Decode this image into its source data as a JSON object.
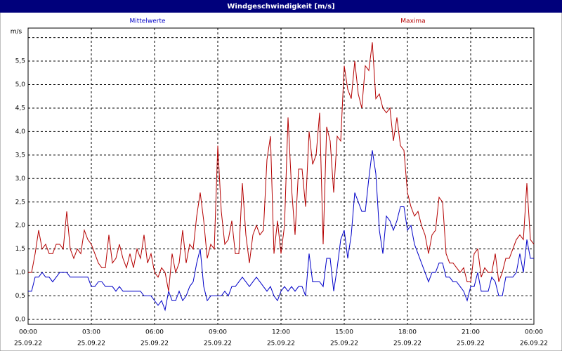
{
  "chart_data": {
    "type": "line",
    "title": "Windgeschwindigkeit [m/s]",
    "y_label": "m/s",
    "x": [
      0,
      10,
      20,
      30,
      40,
      50,
      60,
      70,
      80,
      90,
      100,
      110,
      120,
      130,
      140,
      150,
      160,
      170,
      180,
      190,
      200,
      210,
      220,
      230,
      240,
      250,
      260,
      270,
      280,
      290,
      300,
      310,
      320,
      330,
      340,
      350,
      360,
      370,
      380,
      390,
      400,
      410,
      420,
      430,
      440,
      450,
      460,
      470,
      480,
      490,
      500,
      510,
      520,
      530,
      540,
      550,
      560,
      570,
      580,
      590,
      600,
      610,
      620,
      630,
      640,
      650,
      660,
      670,
      680,
      690,
      700,
      710,
      720,
      730,
      740,
      750,
      760,
      770,
      780,
      790,
      800,
      810,
      820,
      830,
      840,
      850,
      860,
      870,
      880,
      890,
      900,
      910,
      920,
      930,
      940,
      950,
      960,
      970,
      980,
      990,
      1000,
      1010,
      1020,
      1030,
      1040,
      1050,
      1060,
      1070,
      1080,
      1090,
      1100,
      1110,
      1120,
      1130,
      1140,
      1150,
      1160,
      1170,
      1180,
      1190,
      1200,
      1210,
      1220,
      1230,
      1240,
      1250,
      1260,
      1270,
      1280,
      1290,
      1300,
      1310,
      1320,
      1330,
      1340,
      1350,
      1360,
      1370,
      1380,
      1390,
      1400,
      1410,
      1420,
      1430,
      1440
    ],
    "series": [
      {
        "name": "Mittelwerte",
        "color": "#0000c8",
        "values": [
          0.6,
          0.6,
          0.9,
          0.9,
          1.0,
          0.9,
          0.9,
          0.8,
          0.9,
          1.0,
          1.0,
          1.0,
          0.9,
          0.9,
          0.9,
          0.9,
          0.9,
          0.9,
          0.7,
          0.7,
          0.8,
          0.8,
          0.7,
          0.7,
          0.7,
          0.6,
          0.7,
          0.6,
          0.6,
          0.6,
          0.6,
          0.6,
          0.6,
          0.5,
          0.5,
          0.5,
          0.4,
          0.3,
          0.4,
          0.2,
          0.6,
          0.4,
          0.4,
          0.6,
          0.4,
          0.5,
          0.7,
          0.8,
          1.2,
          1.5,
          0.7,
          0.4,
          0.5,
          0.5,
          0.5,
          0.5,
          0.6,
          0.5,
          0.7,
          0.7,
          0.8,
          0.9,
          0.8,
          0.7,
          0.8,
          0.9,
          0.8,
          0.7,
          0.6,
          0.7,
          0.5,
          0.4,
          0.6,
          0.7,
          0.6,
          0.7,
          0.6,
          0.7,
          0.7,
          0.5,
          1.4,
          0.8,
          0.8,
          0.8,
          0.7,
          1.3,
          1.3,
          0.6,
          1.1,
          1.7,
          1.9,
          1.3,
          1.8,
          2.7,
          2.5,
          2.3,
          2.3,
          3.0,
          3.6,
          3.1,
          1.9,
          1.4,
          2.2,
          2.1,
          1.9,
          2.1,
          2.4,
          2.4,
          1.9,
          2.0,
          1.6,
          1.4,
          1.2,
          1.0,
          0.8,
          1.0,
          1.0,
          1.2,
          1.2,
          0.9,
          0.9,
          0.8,
          0.8,
          0.7,
          0.6,
          0.4,
          0.7,
          0.7,
          1.0,
          0.6,
          0.6,
          0.6,
          0.9,
          0.8,
          0.5,
          0.5,
          0.9,
          0.9,
          0.9,
          1.0,
          1.4,
          1.0,
          1.7,
          1.3,
          1.3
        ]
      },
      {
        "name": "Maxima",
        "color": "#b40000",
        "values": [
          1.0,
          1.0,
          1.4,
          1.9,
          1.5,
          1.6,
          1.4,
          1.4,
          1.6,
          1.6,
          1.5,
          2.3,
          1.5,
          1.3,
          1.5,
          1.4,
          1.9,
          1.7,
          1.6,
          1.4,
          1.2,
          1.1,
          1.1,
          1.8,
          1.2,
          1.3,
          1.6,
          1.3,
          1.1,
          1.4,
          1.1,
          1.5,
          1.3,
          1.8,
          1.2,
          1.4,
          1.0,
          0.9,
          1.1,
          1.0,
          0.6,
          1.4,
          1.0,
          1.2,
          1.9,
          1.2,
          1.6,
          1.5,
          2.2,
          2.7,
          2.1,
          1.3,
          1.6,
          1.5,
          3.7,
          2.3,
          1.6,
          1.7,
          2.1,
          1.4,
          1.4,
          2.9,
          1.8,
          1.2,
          1.8,
          2.0,
          1.8,
          1.9,
          3.4,
          3.9,
          1.4,
          2.1,
          1.4,
          2.0,
          4.3,
          2.8,
          1.8,
          3.2,
          3.2,
          2.4,
          4.0,
          3.3,
          3.5,
          4.4,
          1.6,
          4.1,
          3.8,
          2.7,
          3.9,
          3.8,
          5.4,
          4.9,
          4.7,
          5.5,
          4.8,
          4.5,
          5.4,
          5.3,
          5.9,
          4.7,
          4.8,
          4.5,
          4.4,
          4.5,
          3.8,
          4.3,
          3.7,
          3.6,
          2.7,
          2.4,
          2.2,
          2.3,
          2.0,
          1.8,
          1.4,
          1.8,
          1.9,
          2.6,
          2.5,
          1.4,
          1.2,
          1.2,
          1.1,
          1.0,
          1.1,
          0.8,
          0.8,
          1.4,
          1.5,
          0.9,
          1.1,
          1.0,
          1.0,
          1.4,
          0.8,
          1.0,
          1.3,
          1.3,
          1.5,
          1.7,
          1.8,
          1.7,
          2.9,
          1.7,
          1.6
        ]
      }
    ],
    "xlim": [
      0,
      1440
    ],
    "xticks": [
      {
        "value": 0,
        "label": "00:00",
        "date": "25.09.22"
      },
      {
        "value": 180,
        "label": "03:00",
        "date": "25.09.22"
      },
      {
        "value": 360,
        "label": "06:00",
        "date": "25.09.22"
      },
      {
        "value": 540,
        "label": "09:00",
        "date": "25.09.22"
      },
      {
        "value": 720,
        "label": "12:00",
        "date": "25.09.22"
      },
      {
        "value": 900,
        "label": "15:00",
        "date": "25.09.22"
      },
      {
        "value": 1080,
        "label": "18:00",
        "date": "25.09.22"
      },
      {
        "value": 1260,
        "label": "21:00",
        "date": "25.09.22"
      },
      {
        "value": 1440,
        "label": "00:00",
        "date": "26.09.22"
      }
    ],
    "ylim": [
      0,
      6
    ],
    "yticks": [
      {
        "value": 0,
        "label": "0,0"
      },
      {
        "value": 0.5,
        "label": "0,5"
      },
      {
        "value": 1,
        "label": "1,0"
      },
      {
        "value": 1.5,
        "label": "1,5"
      },
      {
        "value": 2,
        "label": "2,0"
      },
      {
        "value": 2.5,
        "label": "2,5"
      },
      {
        "value": 3,
        "label": "3,0"
      },
      {
        "value": 3.5,
        "label": "3,5"
      },
      {
        "value": 4,
        "label": "4,0"
      },
      {
        "value": 4.5,
        "label": "4,5"
      },
      {
        "value": 5,
        "label": "5,0"
      },
      {
        "value": 5.5,
        "label": "5,5"
      }
    ],
    "grid": true
  }
}
